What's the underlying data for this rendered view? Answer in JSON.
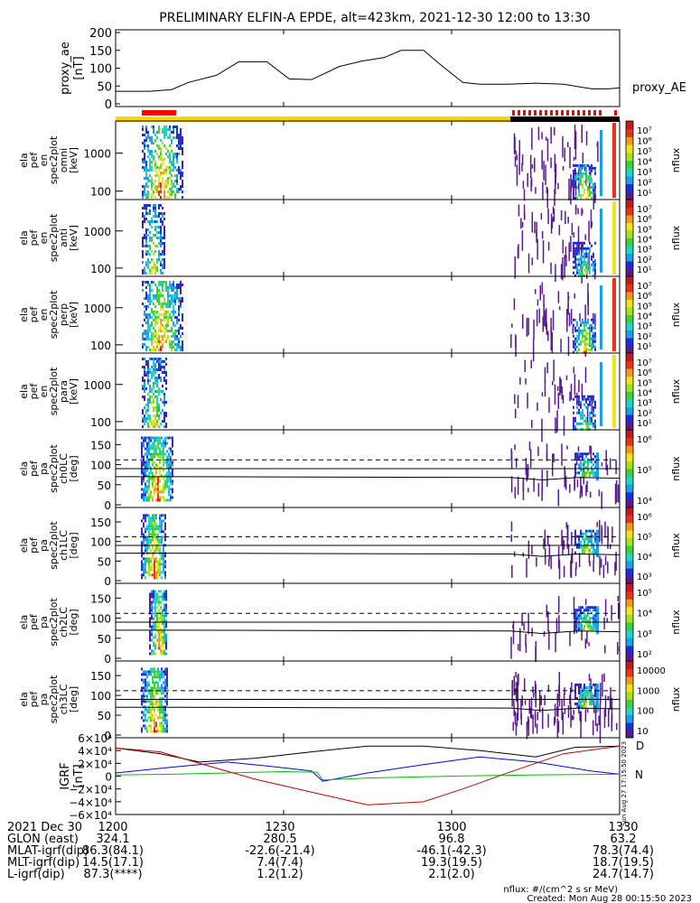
{
  "title": "PRELIMINARY ELFIN-A EPDE, alt=423km, 2021-12-30 12:00 to 13:30",
  "colors": {
    "science_bar": "#ffd700",
    "science_bar_black": "#000000",
    "fast_bar": "#ff0000",
    "mag_black": "#000000",
    "mag_blue": "#0000ff",
    "mag_green": "#00c000",
    "mag_red": "#d00000"
  },
  "colormap": [
    "#5a1a8c",
    "#1e2fd9",
    "#1a9fe8",
    "#21d4c8",
    "#3ad13a",
    "#a6e21a",
    "#f2e31a",
    "#f29a1a",
    "#e8321a",
    "#c21a1a"
  ],
  "time_axis": {
    "start": "1200",
    "end": "1330",
    "ticks": [
      "1200",
      "1230",
      "1300",
      "1330"
    ],
    "date_label": "2021 Dec 30"
  },
  "chart_data": [
    {
      "type": "line",
      "panel": "proxy_ae",
      "ylabel": [
        "proxy_ae",
        "[nT]"
      ],
      "yticks": [
        "200",
        "150",
        "100",
        "50",
        "0"
      ],
      "ylim": [
        0,
        200
      ],
      "legend": "proxy_AE",
      "x_minutes": [
        0,
        6,
        10,
        13,
        18,
        22,
        27,
        31,
        35,
        40,
        44,
        48,
        51,
        55,
        58,
        62,
        65,
        70,
        75,
        80,
        85,
        88,
        90
      ],
      "values": [
        35,
        35,
        40,
        60,
        80,
        118,
        118,
        70,
        68,
        105,
        120,
        130,
        150,
        150,
        110,
        60,
        55,
        55,
        58,
        55,
        42,
        42,
        45
      ]
    },
    {
      "type": "heatmap",
      "panel": "spec-omni",
      "ylabel": [
        "ela",
        "pef",
        "en",
        "spec2plot",
        "omni",
        "[keV]"
      ],
      "yticks": [
        "1000",
        "100"
      ],
      "ylim_keV": [
        60,
        7000
      ],
      "colorbar": {
        "label": "nflux",
        "ticks": [
          "10⁷",
          "10⁶",
          "10⁵",
          "10⁴",
          "10³",
          "10²",
          "10¹"
        ]
      }
    },
    {
      "type": "heatmap",
      "panel": "spec-anti",
      "ylabel": [
        "ela",
        "pef",
        "en",
        "spec2plot",
        "anti",
        "[keV]"
      ],
      "yticks": [
        "1000",
        "100"
      ],
      "ylim_keV": [
        60,
        7000
      ],
      "colorbar": {
        "label": "nflux",
        "ticks": [
          "10⁷",
          "10⁶",
          "10⁵",
          "10⁴",
          "10³",
          "10²",
          "10¹"
        ]
      }
    },
    {
      "type": "heatmap",
      "panel": "spec-perp",
      "ylabel": [
        "ela",
        "pef",
        "en",
        "spec2plot",
        "perp",
        "[keV]"
      ],
      "yticks": [
        "1000",
        "100"
      ],
      "ylim_keV": [
        60,
        7000
      ],
      "colorbar": {
        "label": "nflux",
        "ticks": [
          "10⁷",
          "10⁶",
          "10⁵",
          "10⁴",
          "10³",
          "10²",
          "10¹"
        ]
      }
    },
    {
      "type": "heatmap",
      "panel": "spec-para",
      "ylabel": [
        "ela",
        "pef",
        "en",
        "spec2plot",
        "para",
        "[keV]"
      ],
      "yticks": [
        "1000",
        "100"
      ],
      "ylim_keV": [
        60,
        7000
      ],
      "colorbar": {
        "label": "nflux",
        "ticks": [
          "10⁷",
          "10⁶",
          "10⁵",
          "10⁴",
          "10³",
          "10²",
          "10¹"
        ]
      }
    },
    {
      "type": "heatmap",
      "panel": "pa-ch0",
      "ylabel": [
        "ela",
        "pef",
        "pa",
        "spec2plot",
        "ch0LC",
        "[deg]"
      ],
      "yticks": [
        "150",
        "100",
        "50",
        "0"
      ],
      "ylim": [
        0,
        180
      ],
      "colorbar": {
        "label": "nflux",
        "ticks": [
          "10⁶",
          "10⁵",
          "10⁴"
        ]
      }
    },
    {
      "type": "heatmap",
      "panel": "pa-ch1",
      "ylabel": [
        "ela",
        "pef",
        "pa",
        "spec2plot",
        "ch1LC",
        "[deg]"
      ],
      "yticks": [
        "150",
        "100",
        "50",
        "0"
      ],
      "ylim": [
        0,
        180
      ],
      "colorbar": {
        "label": "nflux",
        "ticks": [
          "10⁶",
          "10⁵",
          "10⁴",
          "10³"
        ]
      }
    },
    {
      "type": "heatmap",
      "panel": "pa-ch2",
      "ylabel": [
        "ela",
        "pef",
        "pa",
        "spec2plot",
        "ch2LC",
        "[deg]"
      ],
      "yticks": [
        "150",
        "100",
        "50",
        "0"
      ],
      "ylim": [
        0,
        180
      ],
      "colorbar": {
        "label": "nflux",
        "ticks": [
          "10⁵",
          "10⁴",
          "10³",
          "10²"
        ]
      }
    },
    {
      "type": "heatmap",
      "panel": "pa-ch3",
      "ylabel": [
        "ela",
        "pef",
        "pa",
        "spec2plot",
        "ch3LC",
        "[deg]"
      ],
      "yticks": [
        "150",
        "100",
        "50",
        "0"
      ],
      "ylim": [
        0,
        180
      ],
      "colorbar": {
        "label": "nflux",
        "ticks": [
          "10000",
          "1000",
          "100",
          "10"
        ]
      }
    },
    {
      "type": "line",
      "panel": "igrf",
      "ylabel": [
        "IGRF",
        "[nT]"
      ],
      "yticks": [
        "6×10⁴",
        "4×10⁴",
        "2×10⁴",
        "0",
        "−2×10⁴",
        "−4×10⁴",
        "−6×10⁴"
      ],
      "ylim": [
        -60000,
        60000
      ],
      "legend": [
        "D",
        "N"
      ],
      "series": [
        {
          "color": "black",
          "x_minutes": [
            0,
            8,
            15,
            25,
            35,
            45,
            55,
            65,
            75,
            82,
            90
          ],
          "values": [
            44000,
            35000,
            22000,
            28000,
            38000,
            47000,
            47000,
            40000,
            30000,
            45000,
            47000
          ]
        },
        {
          "color": "blue",
          "x_minutes": [
            0,
            10,
            20,
            28,
            35,
            37,
            45,
            55,
            65,
            75,
            85,
            90
          ],
          "values": [
            5000,
            14000,
            22000,
            15000,
            8000,
            -8000,
            5000,
            18000,
            30000,
            22000,
            8000,
            3000
          ]
        },
        {
          "color": "green",
          "x_minutes": [
            0,
            10,
            20,
            30,
            36,
            37,
            45,
            60,
            75,
            90
          ],
          "values": [
            2000,
            3000,
            5000,
            7000,
            6000,
            -6000,
            -3000,
            0,
            2000,
            3000
          ]
        },
        {
          "color": "red",
          "x_minutes": [
            0,
            8,
            15,
            25,
            35,
            45,
            55,
            62,
            70,
            80,
            90
          ],
          "values": [
            44000,
            38000,
            20000,
            -5000,
            -25000,
            -45000,
            -40000,
            -20000,
            5000,
            35000,
            47000
          ]
        }
      ]
    }
  ],
  "orbit_table": {
    "rows": [
      {
        "label": "2021 Dec 30",
        "values": [
          "1200",
          "1230",
          "1300",
          "1330"
        ]
      },
      {
        "label": "GLON (east)",
        "values": [
          "324.1",
          "280.5",
          "96.8",
          "63.2"
        ]
      },
      {
        "label": "MLAT-igrf(dip)",
        "values": [
          "86.3(84.1)",
          "-22.6(-21.4)",
          "-46.1(-42.3)",
          "78.3(74.4)"
        ]
      },
      {
        "label": "MLT-igrf(dip)",
        "values": [
          "14.5(17.1)",
          "7.4(7.4)",
          "19.3(19.5)",
          "18.7(19.5)"
        ]
      },
      {
        "label": "L-igrf(dip)",
        "values": [
          "87.3(****)",
          "1.2(1.2)",
          "2.1(2.0)",
          "24.7(14.7)"
        ]
      }
    ]
  },
  "footer": {
    "units": "nflux: #/(cm^2 s sr MeV)",
    "created": "Created: Mon Aug 28 00:15:50 2023",
    "side_stamp": "Sun Aug 27 17:15:50 2023"
  }
}
